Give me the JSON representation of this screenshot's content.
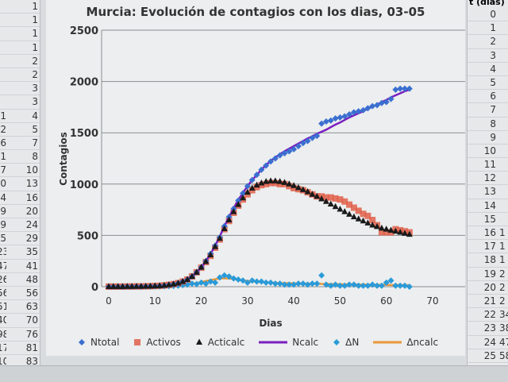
{
  "sheet": {
    "left_partial_column": [
      "",
      "",
      "",
      "",
      "",
      "",
      "",
      "",
      "1",
      "2",
      "6",
      "1",
      "7",
      "0",
      "4",
      "9",
      "9",
      "5",
      "23",
      "47",
      "26",
      "56",
      "51",
      "40",
      "98",
      "17",
      "10"
    ],
    "left_column": [
      "1",
      "1",
      "1",
      "1",
      "2",
      "2",
      "3",
      "3",
      "4",
      "5",
      "7",
      "8",
      "10",
      "13",
      "16",
      "20",
      "24",
      "29",
      "35",
      "41",
      "48",
      "56",
      "63",
      "70",
      "76",
      "81",
      "83"
    ],
    "right_header": "t (dias)",
    "right_column": [
      "0",
      "1",
      "2",
      "3",
      "4",
      "5",
      "6",
      "7",
      "8",
      "9",
      "10",
      "11",
      "12",
      "13",
      "14",
      "15",
      "16",
      "17",
      "18",
      "19",
      "20",
      "21",
      "22",
      "23",
      "24",
      "25",
      "26"
    ],
    "right_partial_column": [
      "",
      "",
      "",
      "",
      "",
      "",
      "",
      "",
      "",
      "",
      "",
      "",
      "",
      "",
      "",
      "",
      "1",
      "1",
      "1",
      "2",
      "2",
      "2",
      "34",
      "38",
      "47",
      "58",
      "68"
    ]
  },
  "chart_data": {
    "type": "scatter",
    "title": "Murcia: Evolución de contagios con los dias, 03-05",
    "xlabel": "Dias",
    "ylabel": "Contagios",
    "xlim": [
      0,
      70
    ],
    "ylim": [
      0,
      2500
    ],
    "xticks": [
      "0",
      "10",
      "20",
      "30",
      "40",
      "50",
      "60",
      "70"
    ],
    "yticks": [
      "0",
      "500",
      "1000",
      "1500",
      "2000",
      "2500"
    ],
    "grid": "horizontal",
    "legend": "bottom",
    "x": [
      0,
      1,
      2,
      3,
      4,
      5,
      6,
      7,
      8,
      9,
      10,
      11,
      12,
      13,
      14,
      15,
      16,
      17,
      18,
      19,
      20,
      21,
      22,
      23,
      24,
      25,
      26,
      27,
      28,
      29,
      30,
      31,
      32,
      33,
      34,
      35,
      36,
      37,
      38,
      39,
      40,
      41,
      42,
      43,
      44,
      45,
      46,
      47,
      48,
      49,
      50,
      51,
      52,
      53,
      54,
      55,
      56,
      57,
      58,
      59,
      60,
      61,
      62,
      63,
      64,
      65
    ],
    "series": [
      {
        "name": "Ntotal",
        "kind": "marker",
        "marker": "diamond",
        "color": "#3a6fd0",
        "values": [
          1,
          1,
          1,
          1,
          2,
          2,
          3,
          3,
          4,
          5,
          7,
          9,
          13,
          18,
          25,
          35,
          50,
          70,
          100,
          140,
          190,
          250,
          320,
          400,
          480,
          590,
          680,
          760,
          840,
          910,
          980,
          1040,
          1090,
          1140,
          1180,
          1220,
          1250,
          1280,
          1300,
          1320,
          1340,
          1370,
          1400,
          1420,
          1450,
          1470,
          1590,
          1610,
          1620,
          1640,
          1650,
          1660,
          1680,
          1700,
          1710,
          1720,
          1740,
          1760,
          1770,
          1790,
          1800,
          1830,
          1920,
          1930,
          1930,
          1930
        ]
      },
      {
        "name": "Activos",
        "kind": "marker",
        "marker": "square",
        "color": "#e0604a",
        "values": [
          1,
          1,
          1,
          1,
          2,
          2,
          3,
          3,
          4,
          5,
          7,
          9,
          13,
          18,
          25,
          35,
          50,
          70,
          100,
          140,
          185,
          240,
          300,
          380,
          460,
          560,
          640,
          720,
          790,
          850,
          900,
          940,
          970,
          990,
          1000,
          1010,
          1010,
          1000,
          1000,
          980,
          960,
          950,
          940,
          920,
          900,
          880,
          880,
          870,
          870,
          860,
          850,
          830,
          800,
          770,
          740,
          710,
          690,
          650,
          600,
          530,
          530,
          530,
          560,
          550,
          540,
          530
        ]
      },
      {
        "name": "Acticalc",
        "kind": "marker",
        "marker": "triangle",
        "color": "#1a1a1a",
        "values": [
          1,
          1,
          1,
          1,
          2,
          2,
          3,
          3,
          4,
          5,
          7,
          9,
          13,
          18,
          25,
          35,
          50,
          70,
          100,
          140,
          190,
          245,
          310,
          390,
          470,
          565,
          650,
          730,
          800,
          865,
          920,
          960,
          990,
          1010,
          1025,
          1030,
          1030,
          1025,
          1015,
          1000,
          985,
          965,
          945,
          925,
          900,
          880,
          855,
          830,
          805,
          780,
          755,
          730,
          705,
          680,
          660,
          640,
          620,
          600,
          585,
          570,
          560,
          550,
          540,
          530,
          520,
          510
        ]
      },
      {
        "name": "Ncalc",
        "kind": "line",
        "color": "#7a1fc0",
        "values": [
          1,
          1,
          1,
          1,
          2,
          2,
          3,
          3,
          4,
          5,
          7,
          9,
          13,
          18,
          25,
          35,
          50,
          70,
          100,
          140,
          190,
          250,
          320,
          400,
          490,
          590,
          680,
          765,
          845,
          915,
          980,
          1040,
          1090,
          1140,
          1185,
          1225,
          1260,
          1290,
          1320,
          1345,
          1370,
          1395,
          1420,
          1445,
          1465,
          1490,
          1510,
          1530,
          1555,
          1580,
          1600,
          1625,
          1650,
          1670,
          1690,
          1710,
          1735,
          1755,
          1775,
          1800,
          1820,
          1845,
          1865,
          1885,
          1905,
          1920
        ]
      },
      {
        "name": "ΔN",
        "kind": "marker",
        "marker": "diamond",
        "color": "#2a9ad8",
        "values": [
          0,
          0,
          0,
          0,
          1,
          0,
          1,
          0,
          1,
          1,
          2,
          2,
          4,
          5,
          7,
          10,
          15,
          20,
          30,
          25,
          40,
          30,
          50,
          40,
          90,
          110,
          100,
          80,
          70,
          60,
          40,
          60,
          50,
          50,
          40,
          40,
          30,
          30,
          20,
          20,
          20,
          30,
          30,
          20,
          30,
          30,
          110,
          20,
          10,
          20,
          10,
          10,
          20,
          20,
          10,
          10,
          10,
          20,
          10,
          10,
          40,
          60,
          10,
          10,
          10,
          0
        ]
      },
      {
        "name": "Δncalc",
        "kind": "line",
        "color": "#e8983a",
        "values": [
          0,
          0,
          0,
          0,
          0,
          0,
          1,
          1,
          1,
          2,
          2,
          3,
          4,
          6,
          8,
          11,
          15,
          20,
          28,
          36,
          45,
          55,
          65,
          73,
          79,
          82,
          80,
          75,
          68,
          62,
          56,
          52,
          48,
          45,
          42,
          40,
          38,
          36,
          35,
          34,
          33,
          32,
          31,
          30,
          29,
          28,
          27,
          26,
          26,
          25,
          24,
          23,
          23,
          22,
          21,
          20,
          20,
          19,
          18,
          18,
          17,
          16,
          16,
          15,
          15,
          14
        ]
      }
    ]
  },
  "colors": {
    "chart_bg": "#eceeef",
    "grid": "#8a8d90"
  }
}
